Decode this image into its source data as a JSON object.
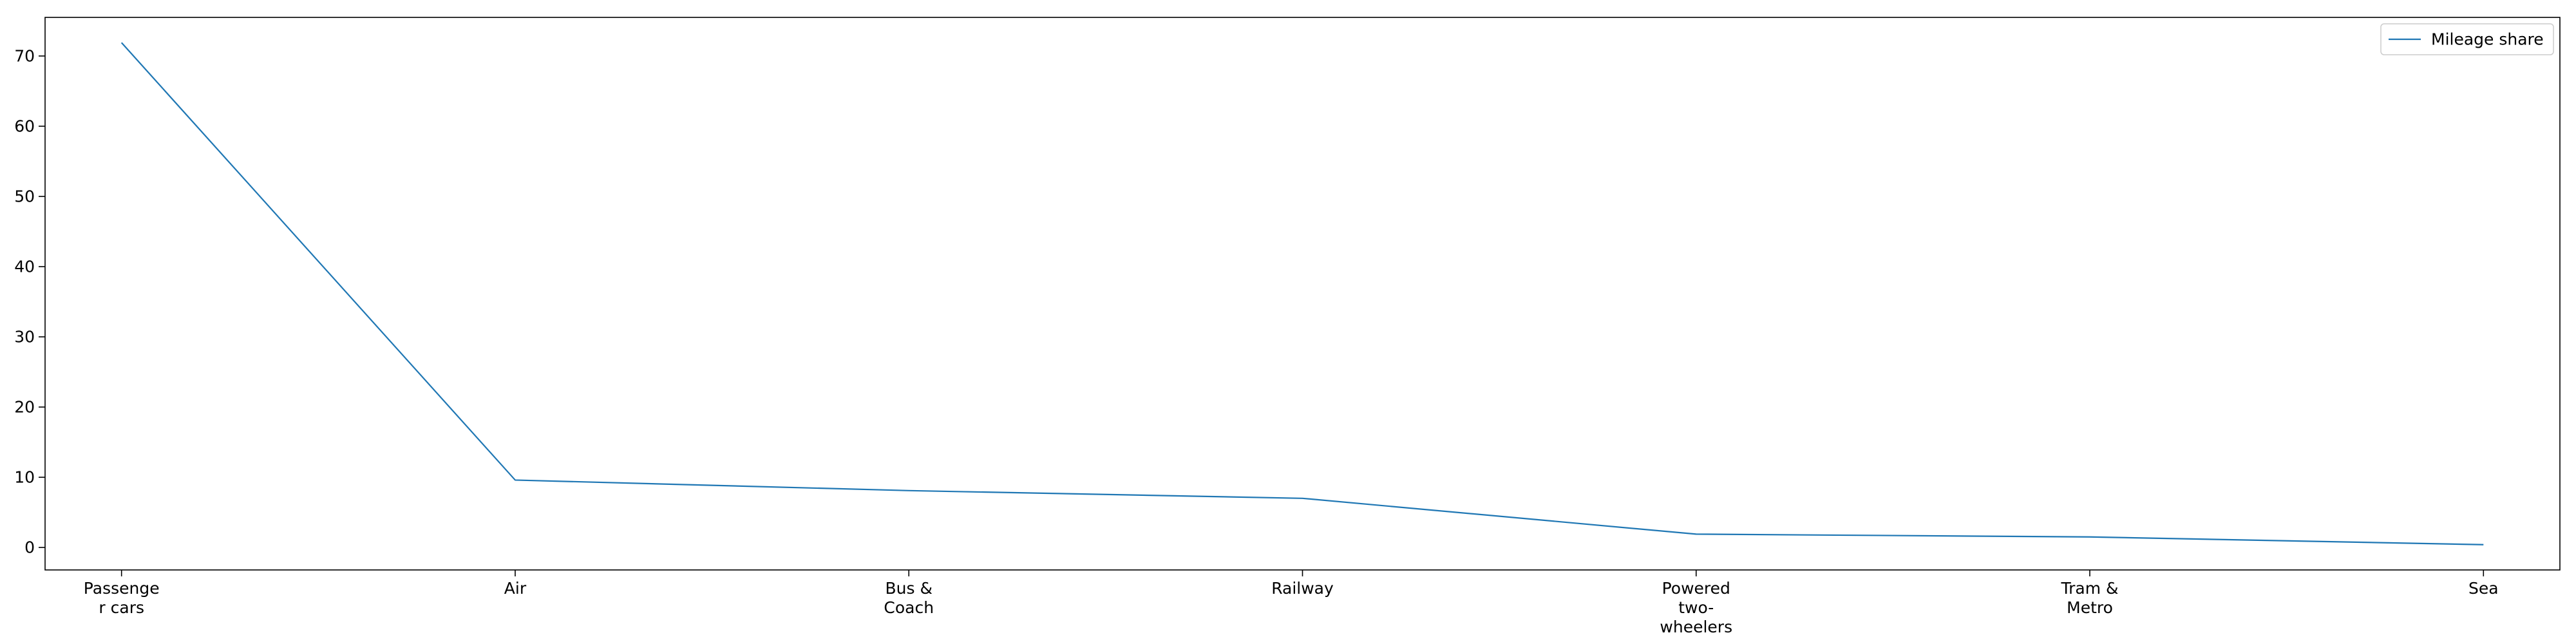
{
  "chart_data": {
    "type": "line",
    "categories": [
      "Passenge\nr cars",
      "Air",
      "Bus &\nCoach",
      "Railway",
      "Powered\ntwo-\nwheelers",
      "Tram &\nMetro",
      "Sea"
    ],
    "series": [
      {
        "name": "Mileage share",
        "values": [
          71.9,
          9.6,
          8.1,
          7.0,
          1.9,
          1.5,
          0.4
        ],
        "color": "#1f77b4"
      }
    ],
    "title": "",
    "xlabel": "",
    "ylabel": "",
    "ylim": [
      -3.2,
      75.5
    ],
    "yticks": [
      0,
      10,
      20,
      30,
      40,
      50,
      60,
      70
    ],
    "grid": false,
    "legend_position": "top-right"
  }
}
